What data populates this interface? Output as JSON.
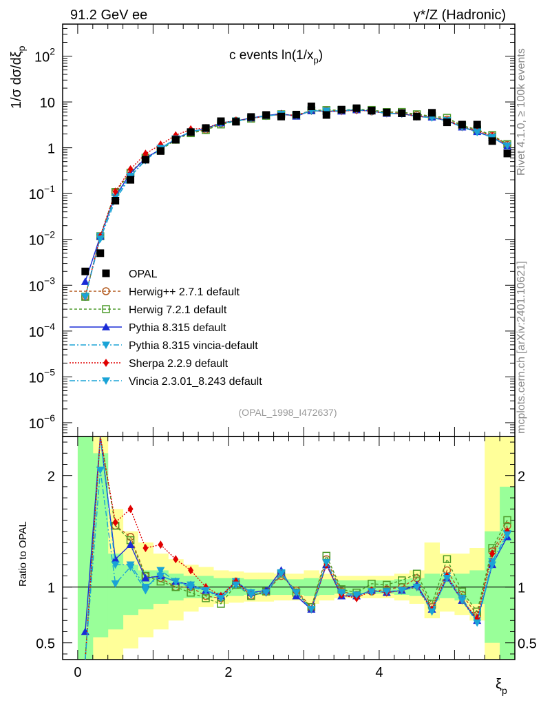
{
  "chart_data": {
    "type": "line",
    "header_left": "91.2 GeV ee",
    "header_right": "γ*/Z (Hadronic)",
    "title": "c events ln(1/x",
    "title_sub": "p",
    "title_close": ")",
    "ylabel_top": "1/σ  dσ/dξ",
    "ylabel_top_sub": "p",
    "ylabel_ratio": "Ratio to OPAL",
    "xlabel": "ξ",
    "xlabel_sub": "p",
    "side_text_top": "Rivet 4.1.0, ≥ 100k events",
    "side_text_bottom": "mcplots.cern.ch [arXiv:2401.10621]",
    "analysis_id": "(OPAL_1998_I472637)",
    "xlim": [
      -0.2,
      5.8
    ],
    "ylim_log": [
      5e-07,
      500
    ],
    "ylim_ratio": [
      0.35,
      2.35
    ],
    "x_ticks": [
      "0",
      "2",
      "4"
    ],
    "y_ticks_top": [
      {
        "base": "10",
        "exp": "2"
      },
      {
        "base": "10",
        "exp": ""
      },
      {
        "base": "1",
        "exp": ""
      },
      {
        "base": "10",
        "exp": "−1"
      },
      {
        "base": "10",
        "exp": "−2"
      },
      {
        "base": "10",
        "exp": "−3"
      },
      {
        "base": "10",
        "exp": "−4"
      },
      {
        "base": "10",
        "exp": "−5"
      },
      {
        "base": "10",
        "exp": "−6"
      }
    ],
    "y_ticks_ratio": [
      "2",
      "1",
      "0.5"
    ],
    "x": [
      0.1,
      0.3,
      0.5,
      0.7,
      0.9,
      1.1,
      1.3,
      1.5,
      1.7,
      1.9,
      2.1,
      2.3,
      2.5,
      2.7,
      2.9,
      3.1,
      3.3,
      3.5,
      3.7,
      3.9,
      4.1,
      4.3,
      4.5,
      4.7,
      4.9,
      5.1,
      5.3,
      5.5,
      5.7
    ],
    "data": {
      "name": "OPAL",
      "values": [
        0.002,
        0.005,
        0.07,
        0.2,
        0.55,
        0.85,
        1.5,
        2.2,
        2.7,
        3.8,
        3.7,
        4.7,
        5.2,
        4.8,
        5.3,
        8.0,
        5.2,
        6.8,
        7.3,
        6.5,
        5.9,
        5.7,
        4.8,
        5.8,
        3.6,
        3.2,
        3.2,
        1.4,
        0.75
      ]
    },
    "band_green": [
      [
        0.35,
        2.35
      ],
      [
        0.55,
        2.2
      ],
      [
        0.62,
        1.3
      ],
      [
        0.75,
        1.2
      ],
      [
        0.8,
        1.15
      ],
      [
        0.85,
        1.15
      ],
      [
        0.88,
        1.12
      ],
      [
        0.9,
        1.1
      ],
      [
        0.9,
        1.1
      ],
      [
        0.92,
        1.08
      ],
      [
        0.92,
        1.08
      ],
      [
        0.93,
        1.07
      ],
      [
        0.93,
        1.07
      ],
      [
        0.93,
        1.07
      ],
      [
        0.93,
        1.07
      ],
      [
        0.92,
        1.08
      ],
      [
        0.93,
        1.07
      ],
      [
        0.94,
        1.06
      ],
      [
        0.94,
        1.06
      ],
      [
        0.94,
        1.06
      ],
      [
        0.94,
        1.06
      ],
      [
        0.93,
        1.07
      ],
      [
        0.92,
        1.08
      ],
      [
        0.88,
        1.12
      ],
      [
        0.9,
        1.1
      ],
      [
        0.88,
        1.12
      ],
      [
        0.85,
        1.15
      ],
      [
        0.5,
        1.5
      ],
      [
        0.35,
        1.9
      ]
    ],
    "band_yellow": [
      [
        0.35,
        2.35
      ],
      [
        0.35,
        2.35
      ],
      [
        0.35,
        1.7
      ],
      [
        0.45,
        1.5
      ],
      [
        0.55,
        1.4
      ],
      [
        0.62,
        1.3
      ],
      [
        0.7,
        1.25
      ],
      [
        0.78,
        1.2
      ],
      [
        0.82,
        1.18
      ],
      [
        0.85,
        1.15
      ],
      [
        0.86,
        1.14
      ],
      [
        0.87,
        1.13
      ],
      [
        0.87,
        1.13
      ],
      [
        0.88,
        1.12
      ],
      [
        0.88,
        1.12
      ],
      [
        0.85,
        1.15
      ],
      [
        0.88,
        1.12
      ],
      [
        0.9,
        1.1
      ],
      [
        0.9,
        1.1
      ],
      [
        0.9,
        1.1
      ],
      [
        0.9,
        1.1
      ],
      [
        0.88,
        1.12
      ],
      [
        0.85,
        1.15
      ],
      [
        0.72,
        1.4
      ],
      [
        0.78,
        1.3
      ],
      [
        0.75,
        1.3
      ],
      [
        0.7,
        1.35
      ],
      [
        0.35,
        2.35
      ],
      [
        0.35,
        2.35
      ]
    ],
    "series": [
      {
        "name": "Herwig++ 2.7.1 default",
        "color": "#b35a1f",
        "dash": "4,3",
        "marker": "circle-open",
        "ratio": [
          0.35,
          2.35,
          1.55,
          1.45,
          1.1,
          1.08,
          1.0,
          1.0,
          0.92,
          0.9,
          1.05,
          0.92,
          0.96,
          1.1,
          0.97,
          0.82,
          1.25,
          0.96,
          0.93,
          0.96,
          0.98,
          1.0,
          1.08,
          0.82,
          1.15,
          0.93,
          0.75,
          1.32,
          1.55
        ]
      },
      {
        "name": "Herwig 7.2.1 default",
        "color": "#4c9a2a",
        "dash": "4,3",
        "marker": "square-open",
        "ratio": [
          0.35,
          2.35,
          1.55,
          1.42,
          1.1,
          1.05,
          1.0,
          0.95,
          0.9,
          0.85,
          1.02,
          0.92,
          0.96,
          1.12,
          0.95,
          0.82,
          1.28,
          0.98,
          0.95,
          1.03,
          1.02,
          1.06,
          1.12,
          0.85,
          1.25,
          0.96,
          0.78,
          1.35,
          1.6
        ]
      },
      {
        "name": "Pythia 8.315 default",
        "color": "#1a2bd6",
        "dash": "",
        "marker": "triangle-up",
        "ratio": [
          0.6,
          2.35,
          1.25,
          1.38,
          1.08,
          1.1,
          1.05,
          1.02,
          0.97,
          0.92,
          1.05,
          0.95,
          0.97,
          1.15,
          0.92,
          0.8,
          1.2,
          0.92,
          0.92,
          0.97,
          0.95,
          0.97,
          1.02,
          0.8,
          1.08,
          0.88,
          0.7,
          1.2,
          1.45
        ]
      },
      {
        "name": "Pythia 8.315 vincia-default",
        "color": "#1aa3d6",
        "dash": "8,3,2,3",
        "marker": "triangle-down",
        "ratio": [
          0.35,
          2.35,
          1.2,
          1.2,
          1.0,
          1.1,
          1.05,
          1.02,
          0.97,
          0.92,
          1.05,
          0.95,
          0.95,
          1.13,
          0.95,
          0.8,
          1.22,
          0.93,
          0.93,
          0.96,
          0.96,
          0.97,
          1.0,
          0.8,
          1.1,
          0.9,
          0.7,
          1.23,
          1.48
        ]
      },
      {
        "name": "Sherpa 2.2.9 default",
        "color": "#e00000",
        "dash": "2,2",
        "marker": "diamond",
        "ratio": [
          0.35,
          2.35,
          1.58,
          1.7,
          1.35,
          1.38,
          1.25,
          1.15,
          1.0,
          0.92,
          1.05,
          0.93,
          0.95,
          1.12,
          0.95,
          0.8,
          1.2,
          0.93,
          0.9,
          0.97,
          0.95,
          0.97,
          1.0,
          0.8,
          1.1,
          0.88,
          0.72,
          1.3,
          1.5
        ]
      },
      {
        "name": "Vincia 2.3.01_8.243 default",
        "color": "#1aa3d6",
        "dash": "8,3,2,3",
        "marker": "triangle-down",
        "ratio": [
          0.35,
          2.05,
          1.03,
          1.18,
          0.97,
          1.15,
          1.05,
          1.0,
          0.97,
          0.9,
          1.02,
          0.93,
          0.95,
          1.12,
          0.95,
          0.8,
          1.22,
          0.95,
          0.93,
          0.96,
          0.96,
          0.97,
          1.0,
          0.78,
          1.08,
          0.88,
          0.68,
          1.2,
          1.47
        ]
      }
    ]
  }
}
